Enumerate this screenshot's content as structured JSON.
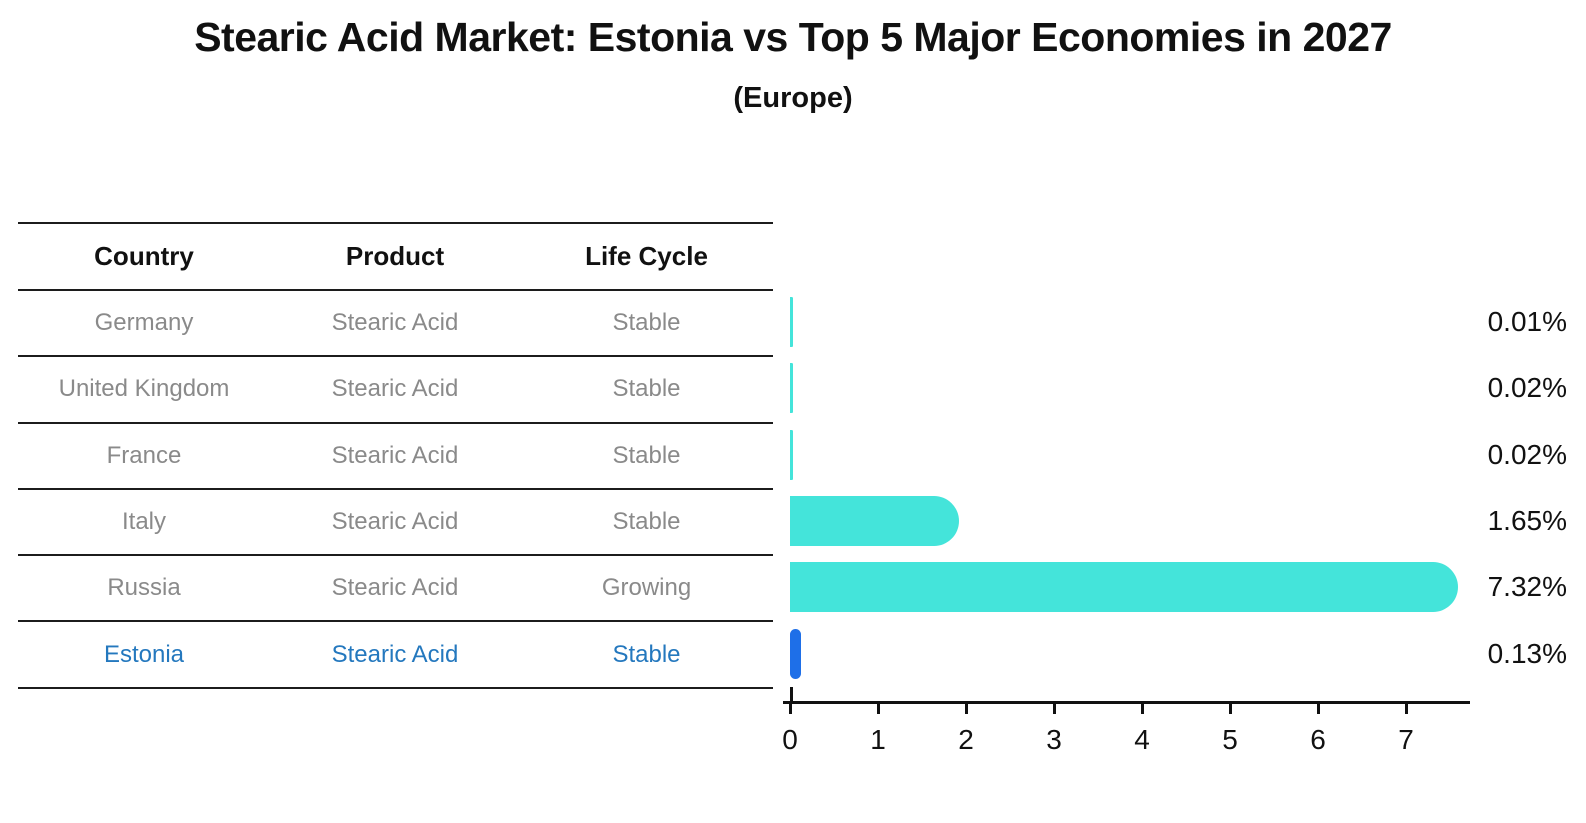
{
  "title": "Stearic Acid Market: Estonia vs Top 5 Major Economies in 2027",
  "subtitle": "(Europe)",
  "table": {
    "headers": [
      "Country",
      "Product",
      "Life Cycle"
    ],
    "rows": [
      {
        "country": "Germany",
        "product": "Stearic Acid",
        "life_cycle": "Stable",
        "highlight": false
      },
      {
        "country": "United Kingdom",
        "product": "Stearic Acid",
        "life_cycle": "Stable",
        "highlight": false
      },
      {
        "country": "France",
        "product": "Stearic Acid",
        "life_cycle": "Stable",
        "highlight": false
      },
      {
        "country": "Italy",
        "product": "Stearic Acid",
        "life_cycle": "Stable",
        "highlight": false
      },
      {
        "country": "Russia",
        "product": "Stearic Acid",
        "life_cycle": "Growing",
        "highlight": false
      },
      {
        "country": "Estonia",
        "product": "Stearic Acid",
        "life_cycle": "Stable",
        "highlight": true
      }
    ]
  },
  "chart_data": {
    "type": "bar",
    "orientation": "horizontal",
    "title": "Stearic Acid Market: Estonia vs Top 5 Major Economies in 2027",
    "subtitle": "(Europe)",
    "categories": [
      "Germany",
      "United Kingdom",
      "France",
      "Italy",
      "Russia",
      "Estonia"
    ],
    "values": [
      0.01,
      0.02,
      0.02,
      1.65,
      7.32,
      0.13
    ],
    "value_labels": [
      "0.01%",
      "0.02%",
      "0.02%",
      "1.65%",
      "7.32%",
      "0.13%"
    ],
    "x_ticks": [
      "0",
      "1",
      "2",
      "3",
      "4",
      "5",
      "6",
      "7"
    ],
    "xlim": [
      0,
      7.7
    ],
    "xlabel": "",
    "ylabel": "",
    "grid": false,
    "legend": "none",
    "bar_color": "#44E4DA",
    "highlight_bar_color": "#1E6FE8",
    "highlight_index": 5
  },
  "colors": {
    "background": "#FFFFFF",
    "title_text": "#111111",
    "table_text": "#8A8A8A",
    "header_text": "#111111",
    "highlight_text": "#2478BE",
    "rule_line": "#1C1C1C",
    "axis": "#111111"
  }
}
